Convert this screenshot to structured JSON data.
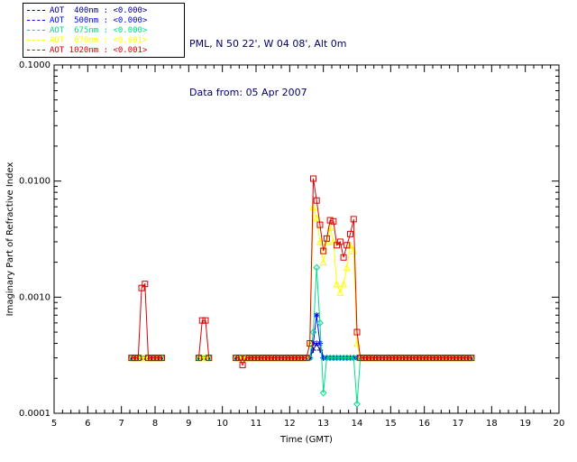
{
  "header": {
    "station": "PML, N 50 22', W 04 08', Alt 0m",
    "date_line": "Data from: 05 Apr 2007",
    "text_color": "#000066"
  },
  "chart_data": {
    "type": "line",
    "title": "",
    "xlabel": "Time (GMT)",
    "ylabel": "Imaginary Part of Refractive Index",
    "xlim": [
      5,
      20
    ],
    "ylim": [
      0.0001,
      0.1
    ],
    "yscale": "log",
    "grid": false,
    "legend_position": "top-left",
    "x_ticks": [
      5,
      6,
      7,
      8,
      9,
      10,
      11,
      12,
      13,
      14,
      15,
      16,
      17,
      18,
      19,
      20
    ],
    "y_ticks": [
      {
        "value": 0.0001,
        "label": "0.0001"
      },
      {
        "value": 0.001,
        "label": "0.0010"
      },
      {
        "value": 0.01,
        "label": "0.0100"
      },
      {
        "value": 0.1,
        "label": "0.1000"
      }
    ],
    "baseline": {
      "segments": [
        [
          7.3,
          8.2
        ],
        [
          9.3,
          9.6
        ],
        [
          10.4,
          17.4
        ]
      ],
      "step": 0.1,
      "value": 0.0003
    },
    "series": [
      {
        "name": "AOT 400nm",
        "legend_label": "AOT  400nm : <0.000>",
        "color": "#000080",
        "marker": "plus",
        "points": [
          [
            12.7,
            0.00035
          ],
          [
            12.8,
            0.0004
          ],
          [
            12.9,
            0.00035
          ]
        ]
      },
      {
        "name": "AOT 500nm",
        "legend_label": "AOT  500nm : <0.000>",
        "color": "#0000ff",
        "marker": "asterisk",
        "points": [
          [
            12.7,
            0.0004
          ],
          [
            12.8,
            0.0007
          ],
          [
            12.9,
            0.0004
          ]
        ]
      },
      {
        "name": "AOT 675nm",
        "legend_label": "AOT  675nm : <0.000>",
        "color": "#00dd88",
        "marker": "diamond",
        "points": [
          [
            12.7,
            0.0005
          ],
          [
            12.8,
            0.0018
          ],
          [
            12.9,
            0.0006
          ],
          [
            13.0,
            0.00015
          ],
          [
            14.0,
            0.00012
          ]
        ]
      },
      {
        "name": "AOT 870nm",
        "legend_label": "AOT  870nm : <0.001>",
        "color": "#ffff00",
        "marker": "triangle",
        "points": [
          [
            12.6,
            0.0004
          ],
          [
            12.7,
            0.006
          ],
          [
            12.8,
            0.0048
          ],
          [
            12.9,
            0.003
          ],
          [
            13.0,
            0.002
          ],
          [
            13.1,
            0.003
          ],
          [
            13.2,
            0.004
          ],
          [
            13.3,
            0.003
          ],
          [
            13.4,
            0.0013
          ],
          [
            13.5,
            0.0011
          ],
          [
            13.6,
            0.0013
          ],
          [
            13.7,
            0.0018
          ],
          [
            13.8,
            0.0028
          ],
          [
            13.9,
            0.0025
          ],
          [
            14.0,
            0.0004
          ]
        ]
      },
      {
        "name": "AOT 1020nm",
        "legend_label": "AOT 1020nm : <0.001>",
        "color": "#dd0000",
        "marker": "square",
        "points": [
          [
            7.6,
            0.0012
          ],
          [
            7.7,
            0.0013
          ],
          [
            9.4,
            0.00063
          ],
          [
            9.5,
            0.00063
          ],
          [
            10.6,
            0.00026
          ],
          [
            12.6,
            0.0004
          ],
          [
            12.7,
            0.0105
          ],
          [
            12.8,
            0.0068
          ],
          [
            12.9,
            0.0042
          ],
          [
            13.0,
            0.0025
          ],
          [
            13.1,
            0.0032
          ],
          [
            13.2,
            0.0046
          ],
          [
            13.3,
            0.0045
          ],
          [
            13.4,
            0.0028
          ],
          [
            13.5,
            0.003
          ],
          [
            13.6,
            0.0022
          ],
          [
            13.7,
            0.0028
          ],
          [
            13.8,
            0.0035
          ],
          [
            13.9,
            0.0047
          ],
          [
            14.0,
            0.0005
          ]
        ]
      }
    ]
  }
}
